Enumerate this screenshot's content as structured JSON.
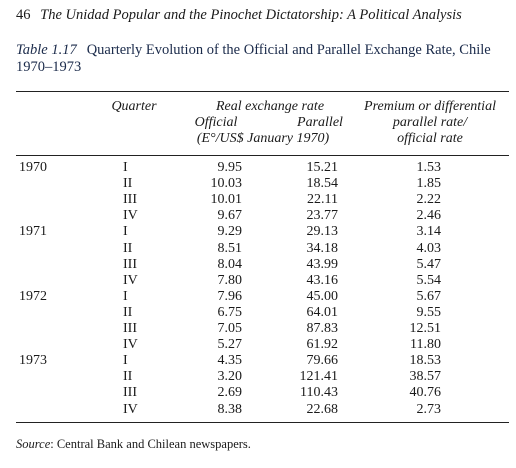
{
  "running_head": {
    "page_number": "46",
    "title": "The Unidad Popular and the Pinochet Dictatorship: A Political Analysis"
  },
  "table": {
    "label": "Table 1.17",
    "title": "Quarterly Evolution of the Official and Parallel Exchange Rate, Chile 1970–1973",
    "headers": {
      "quarter": "Quarter",
      "real_exchange_rate": "Real exchange rate",
      "official": "Official",
      "parallel": "Parallel",
      "units": "(E°/US$ January 1970)",
      "premium_line1": "Premium or differential",
      "premium_line2": "parallel rate/",
      "premium_line3": "official rate"
    },
    "rows": [
      {
        "year": "1970",
        "quarter": "I",
        "official": "9.95",
        "parallel": "15.21",
        "premium": "1.53"
      },
      {
        "year": "",
        "quarter": "II",
        "official": "10.03",
        "parallel": "18.54",
        "premium": "1.85"
      },
      {
        "year": "",
        "quarter": "III",
        "official": "10.01",
        "parallel": "22.11",
        "premium": "2.22"
      },
      {
        "year": "",
        "quarter": "IV",
        "official": "9.67",
        "parallel": "23.77",
        "premium": "2.46"
      },
      {
        "year": "1971",
        "quarter": "I",
        "official": "9.29",
        "parallel": "29.13",
        "premium": "3.14"
      },
      {
        "year": "",
        "quarter": "II",
        "official": "8.51",
        "parallel": "34.18",
        "premium": "4.03"
      },
      {
        "year": "",
        "quarter": "III",
        "official": "8.04",
        "parallel": "43.99",
        "premium": "5.47"
      },
      {
        "year": "",
        "quarter": "IV",
        "official": "7.80",
        "parallel": "43.16",
        "premium": "5.54"
      },
      {
        "year": "1972",
        "quarter": "I",
        "official": "7.96",
        "parallel": "45.00",
        "premium": "5.67"
      },
      {
        "year": "",
        "quarter": "II",
        "official": "6.75",
        "parallel": "64.01",
        "premium": "9.55"
      },
      {
        "year": "",
        "quarter": "III",
        "official": "7.05",
        "parallel": "87.83",
        "premium": "12.51"
      },
      {
        "year": "",
        "quarter": "IV",
        "official": "5.27",
        "parallel": "61.92",
        "premium": "11.80"
      },
      {
        "year": "1973",
        "quarter": "I",
        "official": "4.35",
        "parallel": "79.66",
        "premium": "18.53"
      },
      {
        "year": "",
        "quarter": "II",
        "official": "3.20",
        "parallel": "121.41",
        "premium": "38.57"
      },
      {
        "year": "",
        "quarter": "III",
        "official": "2.69",
        "parallel": "110.43",
        "premium": "40.76"
      },
      {
        "year": "",
        "quarter": "IV",
        "official": "8.38",
        "parallel": "22.68",
        "premium": "2.73"
      }
    ]
  },
  "source": {
    "label": "Source",
    "text": ": Central Bank and Chilean newspapers."
  }
}
